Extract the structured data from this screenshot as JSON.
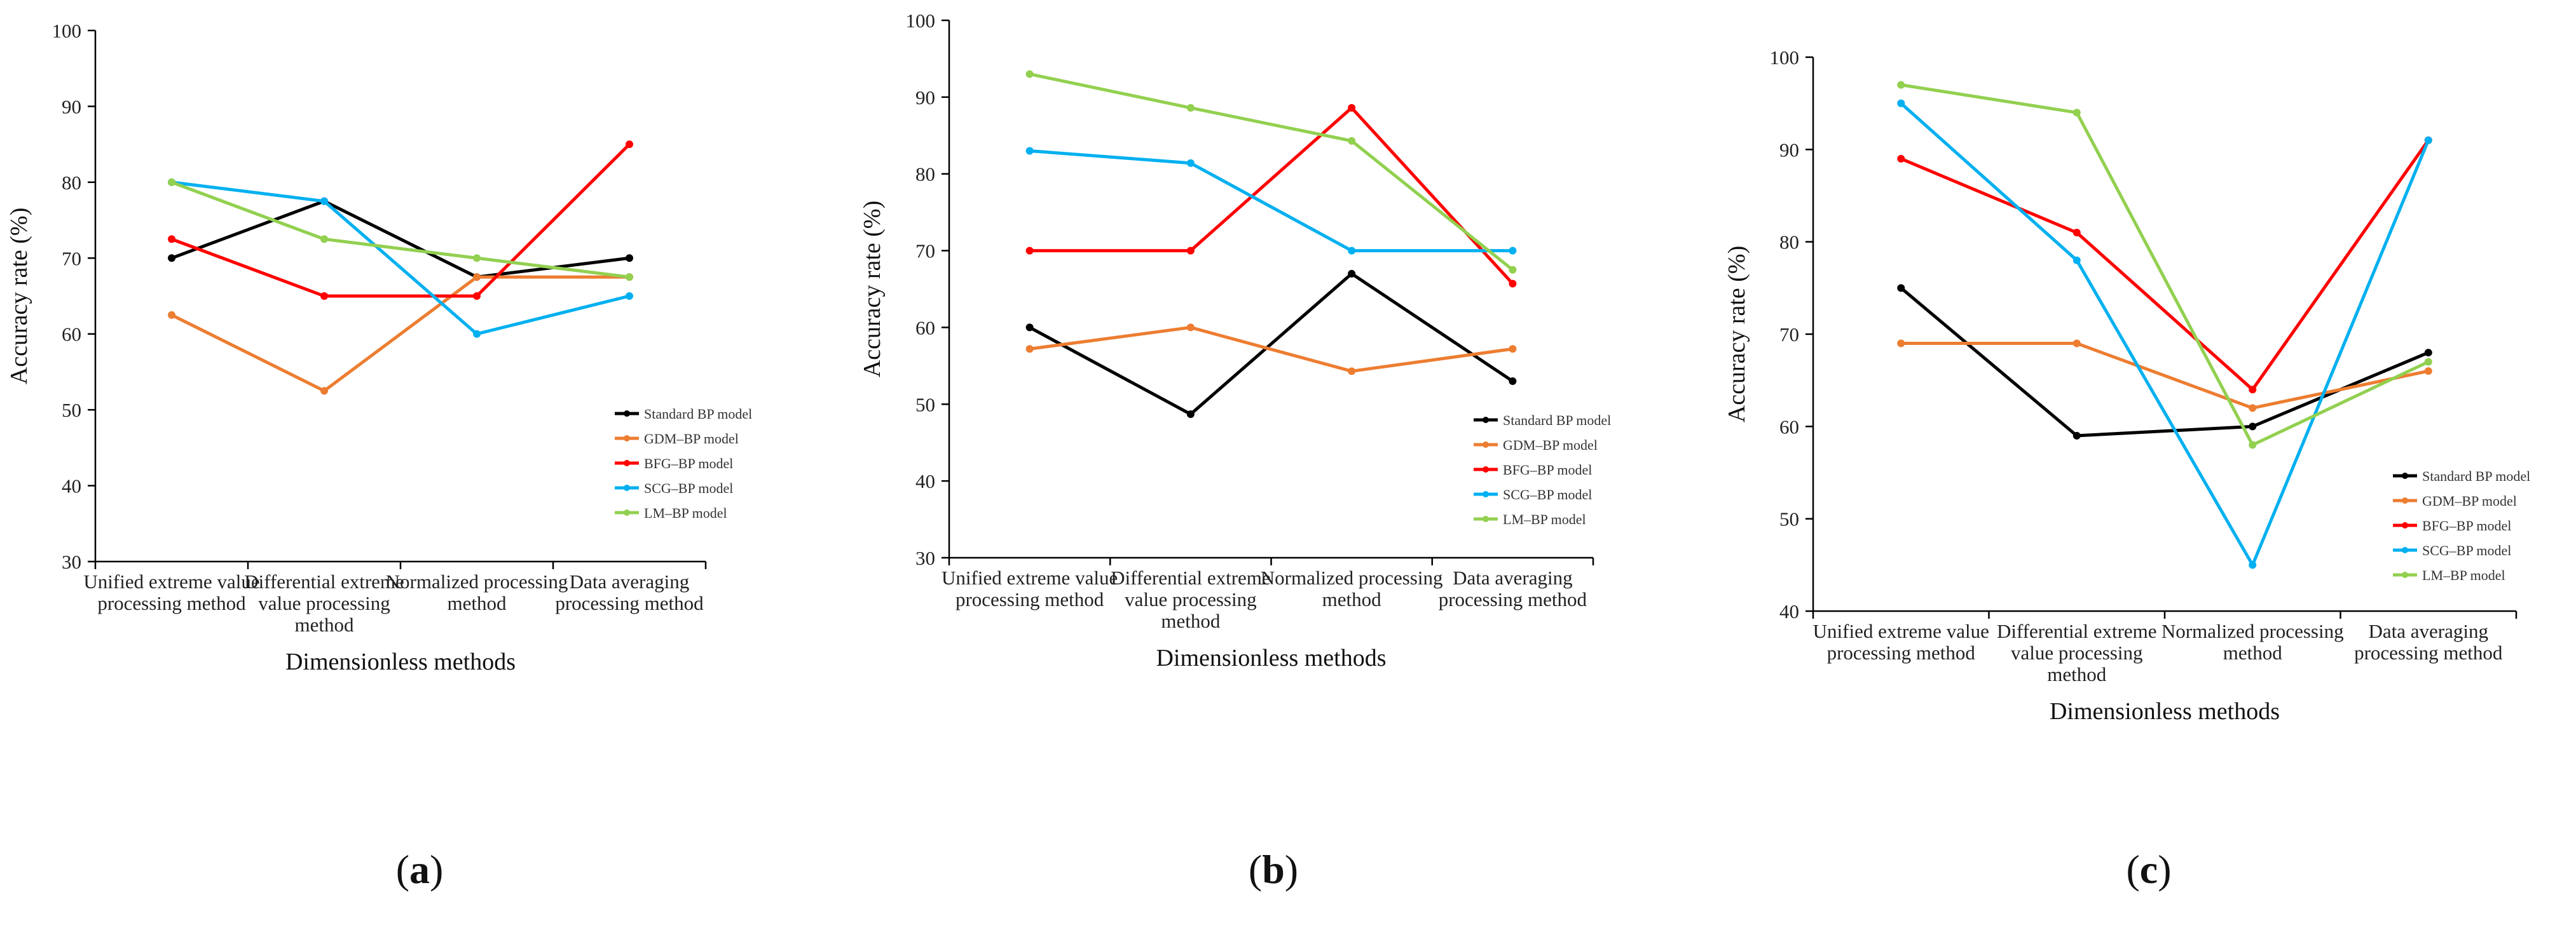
{
  "legend_labels": [
    "Standard BP model",
    "GDM–BP model",
    "BFG–BP model",
    "SCG–BP model",
    "LM–BP model"
  ],
  "series_colors": [
    "#000000",
    "#ED7D31",
    "#FF0000",
    "#00B0F0",
    "#92D050"
  ],
  "chart_data": [
    {
      "panel": "(a)",
      "type": "line",
      "categories": [
        "Unified extreme value processing method",
        "Differential extreme value processing method",
        "Normalized processing method",
        "Data averaging processing method"
      ],
      "ylim": [
        30,
        100
      ],
      "yticks": [
        30,
        40,
        50,
        60,
        70,
        80,
        90,
        100
      ],
      "xlabel": "Dimensionless methods",
      "ylabel": "Accuracy rate (%)",
      "legend_position": "bottom-right",
      "series": [
        {
          "name": "Standard BP model",
          "values": [
            70,
            77.5,
            67.5,
            70
          ]
        },
        {
          "name": "GDM–BP model",
          "values": [
            62.5,
            52.5,
            67.5,
            67.5
          ]
        },
        {
          "name": "BFG–BP model",
          "values": [
            72.5,
            65,
            65,
            85
          ]
        },
        {
          "name": "SCG–BP model",
          "values": [
            80,
            77.5,
            60,
            65
          ]
        },
        {
          "name": "LM–BP model",
          "values": [
            80,
            72.5,
            70,
            67.5
          ]
        }
      ]
    },
    {
      "panel": "(b)",
      "type": "line",
      "categories": [
        "Unified extreme value processing method",
        "Differential extreme value processing method",
        "Normalized processing method",
        "Data averaging processing method"
      ],
      "ylim": [
        30,
        100
      ],
      "yticks": [
        30,
        40,
        50,
        60,
        70,
        80,
        90,
        100
      ],
      "xlabel": "Dimensionless methods",
      "ylabel": "Accuracy rate (%)",
      "legend_position": "bottom-right",
      "series": [
        {
          "name": "Standard BP model",
          "values": [
            60,
            48.7,
            67,
            53
          ]
        },
        {
          "name": "GDM–BP model",
          "values": [
            57.2,
            60,
            54.3,
            57.2
          ]
        },
        {
          "name": "BFG–BP model",
          "values": [
            70,
            70,
            88.6,
            65.7
          ]
        },
        {
          "name": "SCG–BP model",
          "values": [
            83,
            81.4,
            70,
            70
          ]
        },
        {
          "name": "LM–BP model",
          "values": [
            93,
            88.6,
            84.3,
            67.5
          ]
        }
      ]
    },
    {
      "panel": "(c)",
      "type": "line",
      "categories": [
        "Unified extreme value processing method",
        "Differential extreme value processing method",
        "Normalized processing method",
        "Data averaging processing method"
      ],
      "ylim": [
        40,
        100
      ],
      "yticks": [
        40,
        50,
        60,
        70,
        80,
        90,
        100
      ],
      "xlabel": "Dimensionless methods",
      "ylabel": "Accuracy rate (%)",
      "legend_position": "bottom-right",
      "series": [
        {
          "name": "Standard BP model",
          "values": [
            75,
            59,
            60,
            68
          ]
        },
        {
          "name": "GDM–BP model",
          "values": [
            69,
            69,
            62,
            66
          ]
        },
        {
          "name": "BFG–BP model",
          "values": [
            89,
            81,
            64,
            91
          ]
        },
        {
          "name": "SCG–BP model",
          "values": [
            95,
            78,
            45,
            91
          ]
        },
        {
          "name": "LM–BP model",
          "values": [
            97,
            94,
            58,
            67
          ]
        }
      ]
    }
  ],
  "category_lines": [
    [
      "Unified extreme value",
      "processing method"
    ],
    [
      "Differential extreme",
      "value processing",
      "method"
    ],
    [
      "Normalized processing",
      "method"
    ],
    [
      "Data averaging",
      "processing method"
    ]
  ]
}
